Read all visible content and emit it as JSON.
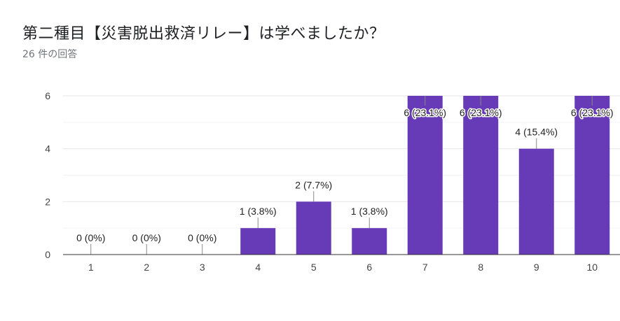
{
  "title": "第二種目【災害脱出救済リレー】は学べましたか？",
  "subtitle": "26 件の回答",
  "chart_data": {
    "type": "bar",
    "categories": [
      "1",
      "2",
      "3",
      "4",
      "5",
      "6",
      "7",
      "8",
      "9",
      "10"
    ],
    "values": [
      0,
      0,
      0,
      1,
      2,
      1,
      6,
      6,
      4,
      6
    ],
    "data_labels": [
      "0 (0%)",
      "0 (0%)",
      "0 (0%)",
      "1 (3.8%)",
      "2 (7.7%)",
      "1 (3.8%)",
      "6 (23.1%)",
      "6 (23.1%)",
      "4 (15.4%)",
      "6 (23.1%)"
    ],
    "yticks": [
      "0",
      "2",
      "4",
      "6"
    ],
    "ylim": [
      0,
      6
    ],
    "grid": true,
    "bar_color": "#673ab7",
    "xlabel": "",
    "ylabel": ""
  }
}
